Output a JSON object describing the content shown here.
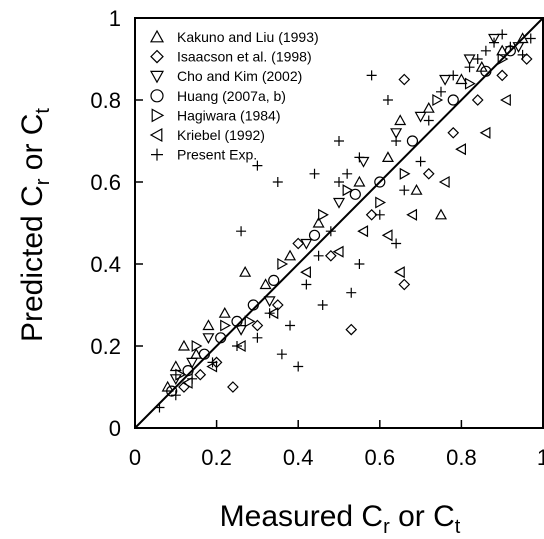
{
  "chart_data": {
    "type": "scatter",
    "xlabel": {
      "prefix": "Measured C",
      "sub1": "r",
      "mid": " or C",
      "sub2": "t"
    },
    "ylabel": {
      "prefix": "Predicted C",
      "sub1": "r",
      "mid": " or C",
      "sub2": "t"
    },
    "xlim": [
      0,
      1
    ],
    "ylim": [
      0,
      1
    ],
    "x_ticks": [
      0,
      0.2,
      0.4,
      0.6,
      0.8,
      1
    ],
    "x_tick_labels": [
      "0",
      "0.2",
      "0.4",
      "0.6",
      "0.8",
      "1"
    ],
    "y_ticks": [
      0,
      0.2,
      0.4,
      0.6,
      0.8,
      1
    ],
    "y_tick_labels": [
      "0",
      "0.2",
      "0.4",
      "0.6",
      "0.8",
      "1"
    ],
    "grid": false,
    "reference_line": {
      "from": [
        0,
        0
      ],
      "to": [
        1,
        1
      ]
    },
    "legend_position": "top-left",
    "series": [
      {
        "name": "Kakuno and Liu (1993)",
        "marker": "triangle-up",
        "points": [
          [
            0.08,
            0.1
          ],
          [
            0.1,
            0.15
          ],
          [
            0.12,
            0.2
          ],
          [
            0.15,
            0.18
          ],
          [
            0.18,
            0.25
          ],
          [
            0.22,
            0.28
          ],
          [
            0.27,
            0.38
          ],
          [
            0.32,
            0.35
          ],
          [
            0.38,
            0.42
          ],
          [
            0.45,
            0.5
          ],
          [
            0.55,
            0.6
          ],
          [
            0.62,
            0.66
          ],
          [
            0.65,
            0.75
          ],
          [
            0.72,
            0.78
          ],
          [
            0.8,
            0.85
          ],
          [
            0.85,
            0.88
          ],
          [
            0.9,
            0.92
          ],
          [
            0.95,
            0.95
          ],
          [
            0.75,
            0.52
          ],
          [
            0.69,
            0.58
          ]
        ]
      },
      {
        "name": "Isaacson et al. (1998)",
        "marker": "diamond",
        "points": [
          [
            0.12,
            0.1
          ],
          [
            0.16,
            0.13
          ],
          [
            0.2,
            0.16
          ],
          [
            0.24,
            0.1
          ],
          [
            0.3,
            0.25
          ],
          [
            0.35,
            0.3
          ],
          [
            0.4,
            0.45
          ],
          [
            0.48,
            0.42
          ],
          [
            0.53,
            0.24
          ],
          [
            0.58,
            0.52
          ],
          [
            0.66,
            0.35
          ],
          [
            0.66,
            0.85
          ],
          [
            0.72,
            0.62
          ],
          [
            0.78,
            0.72
          ],
          [
            0.84,
            0.8
          ],
          [
            0.9,
            0.86
          ],
          [
            0.96,
            0.9
          ]
        ]
      },
      {
        "name": "Cho and Kim (2002)",
        "marker": "triangle-down",
        "points": [
          [
            0.1,
            0.12
          ],
          [
            0.14,
            0.16
          ],
          [
            0.18,
            0.22
          ],
          [
            0.26,
            0.24
          ],
          [
            0.33,
            0.31
          ],
          [
            0.42,
            0.45
          ],
          [
            0.5,
            0.55
          ],
          [
            0.56,
            0.65
          ],
          [
            0.64,
            0.72
          ],
          [
            0.7,
            0.76
          ],
          [
            0.76,
            0.85
          ],
          [
            0.82,
            0.9
          ],
          [
            0.88,
            0.95
          ],
          [
            0.94,
            0.93
          ]
        ]
      },
      {
        "name": "Huang (2007a, b)",
        "marker": "circle",
        "points": [
          [
            0.09,
            0.09
          ],
          [
            0.13,
            0.14
          ],
          [
            0.17,
            0.18
          ],
          [
            0.21,
            0.22
          ],
          [
            0.25,
            0.26
          ],
          [
            0.29,
            0.3
          ],
          [
            0.34,
            0.36
          ],
          [
            0.44,
            0.47
          ],
          [
            0.54,
            0.57
          ],
          [
            0.6,
            0.6
          ],
          [
            0.68,
            0.7
          ],
          [
            0.78,
            0.8
          ],
          [
            0.86,
            0.87
          ],
          [
            0.92,
            0.92
          ]
        ]
      },
      {
        "name": "Hagiwara (1984)",
        "marker": "triangle-right",
        "points": [
          [
            0.11,
            0.13
          ],
          [
            0.15,
            0.2
          ],
          [
            0.22,
            0.25
          ],
          [
            0.28,
            0.26
          ],
          [
            0.36,
            0.4
          ],
          [
            0.46,
            0.52
          ],
          [
            0.52,
            0.58
          ],
          [
            0.6,
            0.55
          ],
          [
            0.66,
            0.62
          ],
          [
            0.74,
            0.8
          ],
          [
            0.82,
            0.84
          ],
          [
            0.9,
            0.9
          ]
        ]
      },
      {
        "name": "Kriebel (1992)",
        "marker": "triangle-left",
        "points": [
          [
            0.13,
            0.11
          ],
          [
            0.19,
            0.15
          ],
          [
            0.26,
            0.2
          ],
          [
            0.34,
            0.28
          ],
          [
            0.42,
            0.38
          ],
          [
            0.5,
            0.43
          ],
          [
            0.56,
            0.48
          ],
          [
            0.62,
            0.47
          ],
          [
            0.65,
            0.38
          ],
          [
            0.68,
            0.52
          ],
          [
            0.76,
            0.6
          ],
          [
            0.8,
            0.68
          ],
          [
            0.86,
            0.72
          ],
          [
            0.91,
            0.8
          ]
        ]
      },
      {
        "name": "Present Exp.",
        "marker": "plus",
        "points": [
          [
            0.06,
            0.05
          ],
          [
            0.1,
            0.08
          ],
          [
            0.14,
            0.12
          ],
          [
            0.19,
            0.16
          ],
          [
            0.25,
            0.2
          ],
          [
            0.26,
            0.48
          ],
          [
            0.3,
            0.22
          ],
          [
            0.33,
            0.28
          ],
          [
            0.36,
            0.18
          ],
          [
            0.4,
            0.15
          ],
          [
            0.42,
            0.35
          ],
          [
            0.45,
            0.42
          ],
          [
            0.48,
            0.48
          ],
          [
            0.5,
            0.6
          ],
          [
            0.52,
            0.62
          ],
          [
            0.55,
            0.4
          ],
          [
            0.58,
            0.86
          ],
          [
            0.6,
            0.52
          ],
          [
            0.62,
            0.8
          ],
          [
            0.64,
            0.7
          ],
          [
            0.66,
            0.58
          ],
          [
            0.7,
            0.65
          ],
          [
            0.72,
            0.75
          ],
          [
            0.75,
            0.82
          ],
          [
            0.78,
            0.86
          ],
          [
            0.82,
            0.88
          ],
          [
            0.84,
            0.9
          ],
          [
            0.86,
            0.92
          ],
          [
            0.88,
            0.94
          ],
          [
            0.9,
            0.96
          ],
          [
            0.92,
            0.93
          ],
          [
            0.95,
            0.91
          ],
          [
            0.97,
            0.95
          ],
          [
            0.38,
            0.25
          ],
          [
            0.46,
            0.3
          ],
          [
            0.53,
            0.33
          ],
          [
            0.64,
            0.45
          ],
          [
            0.3,
            0.64
          ],
          [
            0.35,
            0.6
          ],
          [
            0.44,
            0.62
          ],
          [
            0.5,
            0.7
          ],
          [
            0.55,
            0.66
          ]
        ]
      }
    ]
  }
}
